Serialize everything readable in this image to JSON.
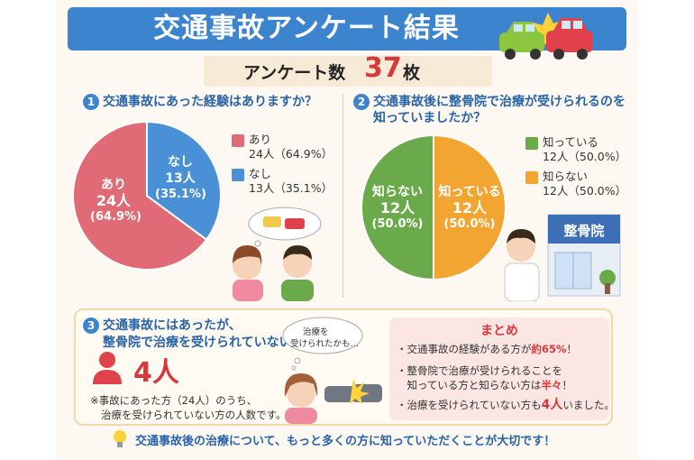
{
  "header": {
    "title": "交通事故アンケート結果",
    "survey_label": "アンケート数",
    "survey_count": "37",
    "survey_unit": "枚"
  },
  "chart_data": [
    {
      "type": "pie",
      "number": "1",
      "title": "交通事故にあった経験はありますか？",
      "slices": [
        {
          "name": "あり",
          "count": "24人",
          "percent": "(64.9%)",
          "legend_value": "24人（64.9%）",
          "value": 64.9,
          "color": "#e06b76"
        },
        {
          "name": "なし",
          "count": "13人",
          "percent": "(35.1%)",
          "legend_value": "13人（35.1%）",
          "value": 35.1,
          "color": "#4a90d6"
        }
      ]
    },
    {
      "type": "pie",
      "number": "2",
      "title_line1": "交通事故後に整骨院で治療が受けられるのを",
      "title_line2": "知っていましたか？",
      "slices": [
        {
          "name": "知っている",
          "count": "12人",
          "percent": "(50.0%)",
          "legend_value": "12人（50.0%）",
          "value": 50.0,
          "color": "#6aaa4a"
        },
        {
          "name": "知らない",
          "count": "12人",
          "percent": "(50.0%)",
          "legend_value": "12人（50.0%）",
          "value": 50.0,
          "color": "#f2a531"
        }
      ]
    }
  ],
  "section3": {
    "number": "3",
    "title_line1": "交通事故にはあったが、",
    "title_line2": "整骨院で治療を受けられていない方",
    "count": "4人",
    "note_line1": "※事故にあった方（24人）のうち、",
    "note_line2": "治療を受けられていない方の人数です。",
    "bubble_line1": "治療を",
    "bubble_line2": "受けられたかも…"
  },
  "clinic_sign": "整骨院",
  "summary": {
    "title": "まとめ",
    "item1_a": "・交通事故の経験がある方が",
    "item1_b": "約65%",
    "item1_c": "！",
    "item2_line1": "・整骨院で治療が受けられることを",
    "item2_line2_a": "　知っている方と知らない方は",
    "item2_line2_b": "半々",
    "item2_line2_c": "！",
    "item3_a": "・治療を受けられていない方も",
    "item3_b": "4人",
    "item3_c": "いました。"
  },
  "footer": "交通事故後の治療について、もっと多くの方に知っていただくことが大切です！",
  "colors": {
    "blue": "#3d84cf",
    "red": "#d9383a",
    "pink": "#e06b76",
    "green": "#6aaa4a",
    "orange": "#f2a531"
  }
}
